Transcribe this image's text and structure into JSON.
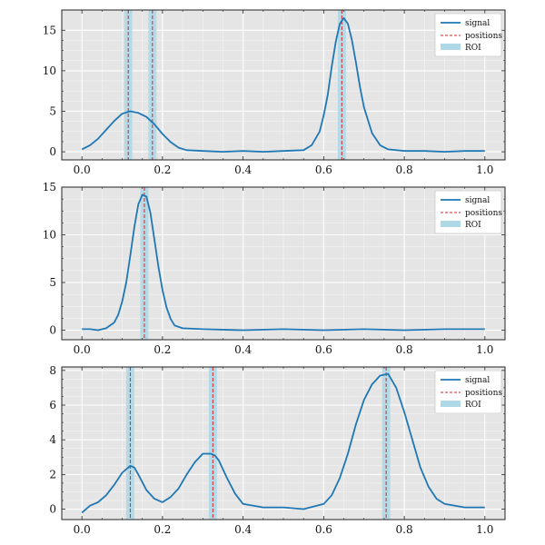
{
  "chart_data": [
    {
      "type": "line",
      "xlim": [
        -0.05,
        1.05
      ],
      "ylim": [
        -1,
        17.5
      ],
      "xticks": [
        "0.0",
        "0.2",
        "0.4",
        "0.6",
        "0.8",
        "1.0"
      ],
      "yticks": [
        "0",
        "5",
        "10",
        "15"
      ],
      "grid": true,
      "legend": {
        "placement": "top-right",
        "entries": [
          "signal",
          "positions",
          "ROI"
        ]
      },
      "series": [
        {
          "name": "signal",
          "x": [
            0.0,
            0.02,
            0.04,
            0.06,
            0.08,
            0.1,
            0.12,
            0.14,
            0.16,
            0.18,
            0.2,
            0.22,
            0.24,
            0.26,
            0.3,
            0.35,
            0.4,
            0.45,
            0.5,
            0.55,
            0.57,
            0.59,
            0.6,
            0.61,
            0.62,
            0.63,
            0.64,
            0.65,
            0.66,
            0.67,
            0.68,
            0.69,
            0.7,
            0.72,
            0.74,
            0.76,
            0.8,
            0.85,
            0.9,
            0.95,
            1.0
          ],
          "values": [
            0.3,
            0.8,
            1.6,
            2.7,
            3.8,
            4.7,
            5.0,
            4.8,
            4.3,
            3.4,
            2.2,
            1.2,
            0.5,
            0.2,
            0.1,
            0.0,
            0.1,
            0.0,
            0.1,
            0.2,
            0.8,
            2.5,
            4.5,
            7.0,
            10.5,
            13.6,
            15.8,
            16.5,
            15.8,
            13.8,
            11.0,
            8.0,
            5.5,
            2.3,
            0.8,
            0.3,
            0.1,
            0.1,
            0.0,
            0.1,
            0.1
          ]
        }
      ],
      "positions": [
        0.115,
        0.175,
        0.645
      ],
      "roi": [
        [
          0.105,
          0.125
        ],
        [
          0.165,
          0.185
        ],
        [
          0.635,
          0.655
        ]
      ]
    },
    {
      "type": "line",
      "xlim": [
        -0.05,
        1.05
      ],
      "ylim": [
        -1,
        15
      ],
      "xticks": [
        "0.0",
        "0.2",
        "0.4",
        "0.6",
        "0.8",
        "1.0"
      ],
      "yticks": [
        "0",
        "5",
        "10",
        "15"
      ],
      "grid": true,
      "legend": {
        "placement": "top-right",
        "entries": [
          "signal",
          "positions",
          "ROI"
        ]
      },
      "series": [
        {
          "name": "signal",
          "x": [
            0.0,
            0.02,
            0.04,
            0.06,
            0.08,
            0.09,
            0.1,
            0.11,
            0.12,
            0.13,
            0.14,
            0.15,
            0.16,
            0.17,
            0.18,
            0.19,
            0.2,
            0.21,
            0.22,
            0.23,
            0.25,
            0.3,
            0.4,
            0.5,
            0.6,
            0.7,
            0.8,
            0.9,
            1.0
          ],
          "values": [
            0.1,
            0.1,
            0.0,
            0.2,
            0.8,
            1.6,
            3.0,
            5.0,
            7.8,
            10.8,
            13.2,
            14.2,
            14.0,
            12.3,
            9.5,
            6.6,
            4.2,
            2.4,
            1.2,
            0.5,
            0.2,
            0.1,
            0.0,
            0.1,
            0.0,
            0.1,
            0.0,
            0.1,
            0.1
          ]
        }
      ],
      "positions": [
        0.155
      ],
      "roi": [
        [
          0.145,
          0.165
        ]
      ]
    },
    {
      "type": "line",
      "xlim": [
        -0.05,
        1.05
      ],
      "ylim": [
        -0.6,
        8.2
      ],
      "xticks": [
        "0.0",
        "0.2",
        "0.4",
        "0.6",
        "0.8",
        "1.0"
      ],
      "yticks": [
        "0",
        "2",
        "4",
        "6",
        "8"
      ],
      "grid": true,
      "legend": {
        "placement": "top-right",
        "entries": [
          "signal",
          "positions",
          "ROI"
        ]
      },
      "series": [
        {
          "name": "signal",
          "x": [
            0.0,
            0.02,
            0.04,
            0.06,
            0.08,
            0.1,
            0.12,
            0.13,
            0.14,
            0.16,
            0.18,
            0.2,
            0.22,
            0.24,
            0.26,
            0.28,
            0.3,
            0.32,
            0.33,
            0.34,
            0.36,
            0.38,
            0.4,
            0.45,
            0.5,
            0.55,
            0.6,
            0.62,
            0.64,
            0.66,
            0.68,
            0.7,
            0.72,
            0.74,
            0.76,
            0.78,
            0.8,
            0.82,
            0.84,
            0.86,
            0.88,
            0.9,
            0.95,
            1.0
          ],
          "values": [
            -0.2,
            0.2,
            0.4,
            0.8,
            1.4,
            2.1,
            2.5,
            2.4,
            2.0,
            1.1,
            0.6,
            0.4,
            0.7,
            1.2,
            2.0,
            2.7,
            3.2,
            3.2,
            3.1,
            2.8,
            1.8,
            0.9,
            0.3,
            0.1,
            0.1,
            0.0,
            0.3,
            0.8,
            1.8,
            3.2,
            4.9,
            6.3,
            7.2,
            7.7,
            7.8,
            7.0,
            5.6,
            4.0,
            2.4,
            1.3,
            0.6,
            0.3,
            0.1,
            0.1
          ]
        }
      ],
      "positions": [
        0.12,
        0.325,
        0.755
      ],
      "roi": [
        [
          0.11,
          0.13
        ],
        [
          0.315,
          0.335
        ],
        [
          0.745,
          0.765
        ]
      ]
    }
  ],
  "colors": {
    "signal": "#1f77b4",
    "positions": "#d62728",
    "roi": "#add8e6",
    "axes_bg": "#e5e5e5",
    "grid": "#ffffff",
    "spine": "#222222"
  }
}
